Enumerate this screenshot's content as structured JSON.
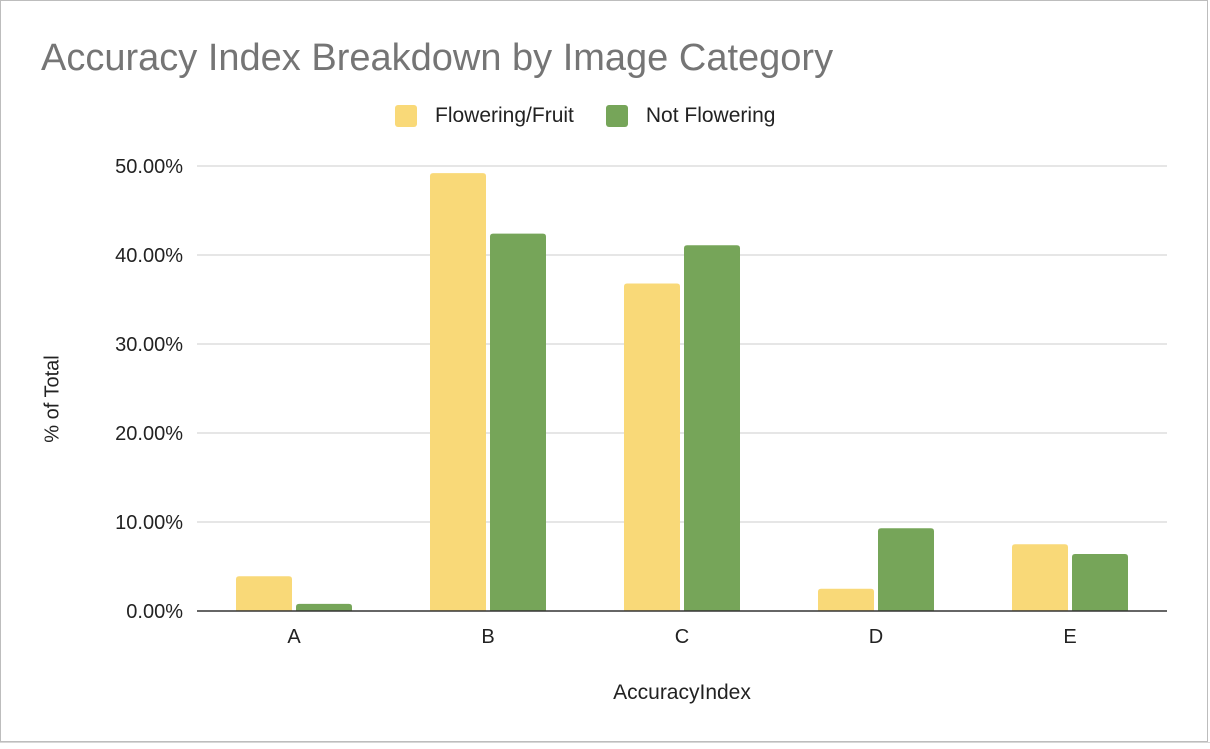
{
  "chart_data": {
    "type": "bar",
    "title": "Accuracy Index Breakdown by Image Category",
    "xlabel": "AccuracyIndex",
    "ylabel": "% of Total",
    "categories": [
      "A",
      "B",
      "C",
      "D",
      "E"
    ],
    "series": [
      {
        "name": "Flowering/Fruit",
        "color": "#f9d978",
        "values": [
          3.9,
          49.2,
          36.8,
          2.5,
          7.5
        ]
      },
      {
        "name": "Not Flowering",
        "color": "#76a559",
        "values": [
          0.8,
          42.4,
          41.1,
          9.3,
          6.4
        ]
      }
    ],
    "ylim": [
      0,
      50
    ],
    "yticks": [
      "0.00%",
      "10.00%",
      "20.00%",
      "30.00%",
      "40.00%",
      "50.00%"
    ],
    "ytick_values": [
      0,
      10,
      20,
      30,
      40,
      50
    ],
    "grid": true,
    "legend_position": "top-center"
  }
}
